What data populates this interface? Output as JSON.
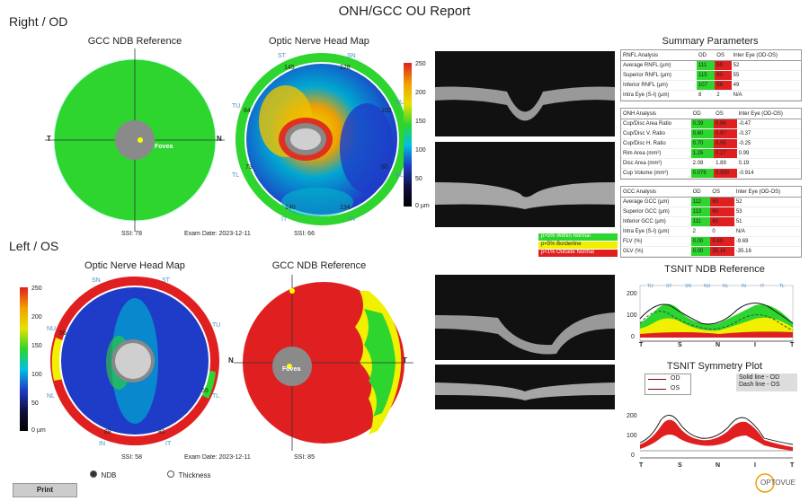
{
  "report_title": "ONH/GCC OU Report",
  "right": {
    "label": "Right / OD",
    "gcc_title": "GCC NDB Reference",
    "onh_title": "Optic Nerve Head Map",
    "fovea": "Fovea",
    "t": "T",
    "n": "N",
    "ssi_gcc": "SSI: 78",
    "exam_date": "Exam Date: 2023-12-11",
    "ssi_onh": "SSI: 66",
    "sectors": {
      "st": "ST",
      "sn": "SN",
      "tu": "TU",
      "nu": "NU",
      "tl": "TL",
      "nl": "NL",
      "it": "IT",
      "in": "IN"
    },
    "values": {
      "st": "145",
      "sn": "128",
      "tu": "84",
      "nu": "102",
      "tl": "73",
      "nl": "80",
      "it": "140",
      "in": "134"
    }
  },
  "left": {
    "label": "Left / OS",
    "onh_title": "Optic Nerve Head Map",
    "gcc_title": "GCC NDB Reference",
    "fovea": "Fovea",
    "n": "N",
    "t": "T",
    "ssi_onh": "SSI: 58",
    "exam_date": "Exam Date: 2023-12-11",
    "ssi_gcc": "SSI: 85",
    "sectors": {
      "sn": "SN",
      "st": "ST",
      "nu": "NU",
      "tu": "TU",
      "nl": "NL",
      "tl": "TL",
      "in": "IN",
      "it": "IT"
    },
    "values": {
      "nu": "56",
      "tl": "55",
      "in": "88",
      "it": "81"
    }
  },
  "colorbar": {
    "ticks": [
      "250",
      "200",
      "150",
      "100",
      "50",
      "0 µm"
    ]
  },
  "legend": {
    "within": "p>5% Within Normal",
    "borderline": "p<5% Borderline",
    "outside": "p<1% Outside Normal"
  },
  "summary": {
    "title": "Summary Parameters",
    "rnfl": {
      "header": [
        "RNFL Analysis",
        "OD",
        "OS",
        "Inter Eye (OD-OS)"
      ],
      "rows": [
        [
          "Average RNFL (µm)",
          "111",
          "59",
          "52"
        ],
        [
          "Superior RNFL (µm)",
          "115",
          "60",
          "55"
        ],
        [
          "Inferior RNFL (µm)",
          "107",
          "58",
          "49"
        ],
        [
          "Intra Eye (S-I) (µm)",
          "8",
          "2",
          "N/A"
        ]
      ]
    },
    "onh": {
      "header": [
        "ONH Analysis",
        "OD",
        "OS",
        "Inter Eye (OD-OS)"
      ],
      "rows": [
        [
          "Cup/Disc Area Ratio",
          "0.39",
          "0.86",
          "-0.47"
        ],
        [
          "Cup/Disc V. Ratio",
          "0.60",
          "0.97",
          "-0.37"
        ],
        [
          "Cup/Disc H. Ratio",
          "0.70",
          "0.95",
          "-0.25"
        ],
        [
          "Rim Area (mm²)",
          "1.26",
          "0.27",
          "0.99"
        ],
        [
          "Disc Area (mm²)",
          "2.08",
          "1.89",
          "0.19"
        ],
        [
          "Cup Volume (mm³)",
          "0.076",
          "0.990",
          "-0.914"
        ]
      ]
    },
    "gcc": {
      "header": [
        "GCC Analysis",
        "OD",
        "OS",
        "Inter Eye (OD-OS)"
      ],
      "rows": [
        [
          "Average GCC (µm)",
          "112",
          "60",
          "52"
        ],
        [
          "Superior GCC (µm)",
          "113",
          "60",
          "53"
        ],
        [
          "Inferior GCC (µm)",
          "111",
          "60",
          "51"
        ],
        [
          "Intra Eye (S-I) (µm)",
          "2",
          "0",
          "N/A"
        ],
        [
          "FLV (%)",
          "0.00",
          "9.69",
          "-9.69"
        ],
        [
          "GLV (%)",
          "0.00",
          "35.16",
          "-35.16"
        ]
      ]
    }
  },
  "tsnit_ndb": {
    "title": "TSNIT NDB Reference",
    "top_labels": [
      "TU",
      "ST",
      "SN",
      "NU",
      "NL",
      "IN",
      "IT",
      "TL"
    ],
    "y_ticks": [
      "200",
      "100",
      "0"
    ],
    "x_labels": [
      "T",
      "S",
      "N",
      "I",
      "T"
    ]
  },
  "tsnit_sym": {
    "title": "TSNIT Symmetry Plot",
    "legend_od": "OD",
    "legend_os": "OS",
    "note_solid": "Solid line - OD",
    "note_dash": "Dash line - OS",
    "y_ticks": [
      "200",
      "100",
      "0"
    ],
    "x_labels": [
      "T",
      "S",
      "N",
      "I",
      "T"
    ]
  },
  "controls": {
    "ndb": "NDB",
    "thickness": "Thickness",
    "print": "Print"
  },
  "logo": "OPTOVUE"
}
